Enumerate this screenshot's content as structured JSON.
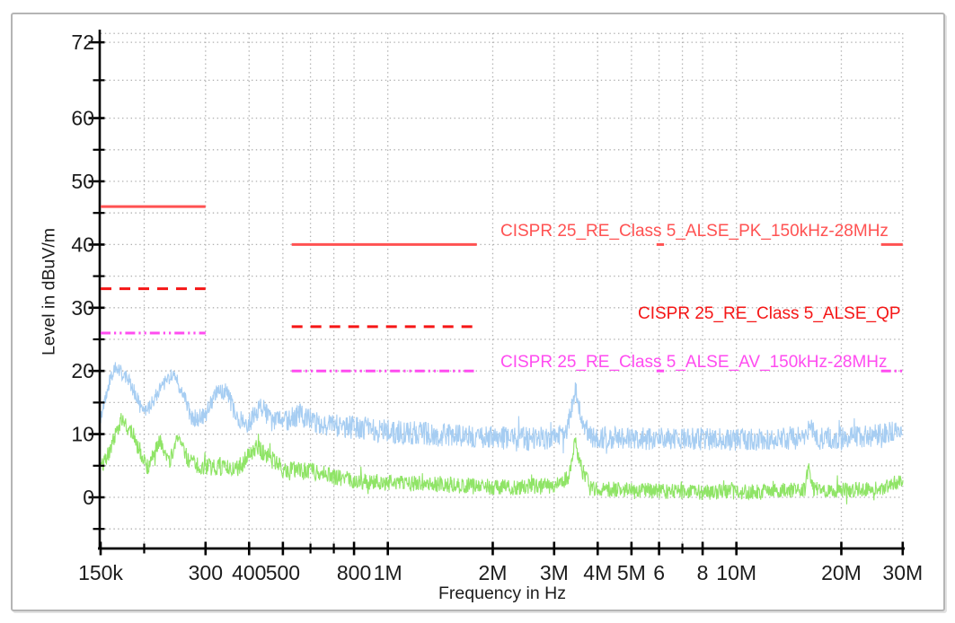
{
  "window": {
    "background": "#ffffff",
    "frame_border_color": "#b5b5b5"
  },
  "chart_data": {
    "type": "line",
    "title": "",
    "xlabel": "Frequency in Hz",
    "ylabel": "Level in dBuV/m",
    "x_scale": "log",
    "x_range_hz": [
      150000,
      30000000
    ],
    "y_range_db": [
      -7.8,
      73.4
    ],
    "grid": {
      "style": "dotted",
      "color": "#b0b0b0"
    },
    "axis_color": "#000000",
    "text_color": "#1c1c1c",
    "y_axis": {
      "major_ticks": [
        72,
        60,
        50,
        40,
        30,
        20,
        10,
        0
      ],
      "minor_ticks": [
        66,
        55,
        45,
        35,
        25,
        15,
        5,
        -5
      ],
      "top_boundary_db": 73.4
    },
    "x_axis": {
      "ticks": [
        {
          "hz": 150000,
          "label": "150k",
          "major": true
        },
        {
          "hz": 200000,
          "label": "",
          "major": false
        },
        {
          "hz": 300000,
          "label": "300",
          "major": true
        },
        {
          "hz": 400000,
          "label": "400",
          "major": true
        },
        {
          "hz": 500000,
          "label": "500",
          "major": true
        },
        {
          "hz": 600000,
          "label": "",
          "major": false
        },
        {
          "hz": 700000,
          "label": "",
          "major": false
        },
        {
          "hz": 800000,
          "label": "800",
          "major": true
        },
        {
          "hz": 1000000,
          "label": "1M",
          "major": true
        },
        {
          "hz": 2000000,
          "label": "2M",
          "major": true
        },
        {
          "hz": 3000000,
          "label": "3M",
          "major": true
        },
        {
          "hz": 4000000,
          "label": "4M",
          "major": true
        },
        {
          "hz": 5000000,
          "label": "5M",
          "major": true
        },
        {
          "hz": 6000000,
          "label": "6",
          "major": true
        },
        {
          "hz": 7000000,
          "label": "",
          "major": false
        },
        {
          "hz": 8000000,
          "label": "8",
          "major": true
        },
        {
          "hz": 10000000,
          "label": "10M",
          "major": true
        },
        {
          "hz": 20000000,
          "label": "20M",
          "major": true
        },
        {
          "hz": 30000000,
          "label": "30M",
          "major": true
        }
      ]
    },
    "limit_lines": [
      {
        "name": "CISPR 25_RE_Class 5_ALSE_PK_150kHz-28MHz",
        "detector": "peak",
        "color": "#ff5252",
        "style": "solid",
        "segments": [
          {
            "from_hz": 150000,
            "to_hz": 300000,
            "level_db": 46
          },
          {
            "from_hz": 530000,
            "to_hz": 1800000,
            "level_db": 40
          },
          {
            "from_hz": 5900000,
            "to_hz": 6200000,
            "level_db": 40
          },
          {
            "from_hz": 26000000,
            "to_hz": 30000000,
            "level_db": 40
          }
        ]
      },
      {
        "name": "CISPR 25_RE_Class 5_ALSE_QP",
        "detector": "quasi-peak",
        "color": "#f51616",
        "style": "dashed",
        "segments": [
          {
            "from_hz": 150000,
            "to_hz": 300000,
            "level_db": 33
          },
          {
            "from_hz": 530000,
            "to_hz": 1800000,
            "level_db": 27
          }
        ]
      },
      {
        "name": "CISPR 25_RE_Class 5_ALSE_AV_150kHz-28MHz",
        "detector": "average",
        "color": "#ff4cf0",
        "style": "dash-dot-dot",
        "segments": [
          {
            "from_hz": 150000,
            "to_hz": 300000,
            "level_db": 26
          },
          {
            "from_hz": 530000,
            "to_hz": 1800000,
            "level_db": 20
          },
          {
            "from_hz": 5900000,
            "to_hz": 6200000,
            "level_db": 20
          },
          {
            "from_hz": 26000000,
            "to_hz": 30000000,
            "level_db": 20
          }
        ]
      }
    ],
    "annotations": [
      {
        "id": "pk",
        "text": "CISPR 25_RE_Class 5_ALSE_PK_150kHz-28MHz",
        "color": "#ff5252"
      },
      {
        "id": "qp",
        "text": "CISPR 25_RE_Class 5_ALSE_QP",
        "color": "#f51616"
      },
      {
        "id": "av",
        "text": "CISPR 25_RE_Class 5_ALSE_AV_150kHz-28MHz",
        "color": "#ff4cf0"
      }
    ],
    "traces": [
      {
        "name": "measurement-peak-trace",
        "color": "#a6cdf2",
        "noise_seed": 7,
        "anchors": [
          [
            150000,
            13.0,
            1.3
          ],
          [
            158000,
            18.0,
            1.2
          ],
          [
            166000,
            20.6,
            1.0
          ],
          [
            180000,
            18.6,
            1.3
          ],
          [
            200000,
            13.2,
            1.3
          ],
          [
            218000,
            16.6,
            1.4
          ],
          [
            240000,
            19.4,
            1.1
          ],
          [
            258000,
            17.0,
            1.5
          ],
          [
            274000,
            12.4,
            1.4
          ],
          [
            300000,
            12.8,
            1.5
          ],
          [
            322000,
            17.0,
            1.3
          ],
          [
            346000,
            16.6,
            1.4
          ],
          [
            370000,
            12.2,
            1.5
          ],
          [
            400000,
            11.9,
            1.7
          ],
          [
            433000,
            14.4,
            1.6
          ],
          [
            468000,
            11.9,
            1.7
          ],
          [
            520000,
            12.3,
            1.8
          ],
          [
            560000,
            13.1,
            1.8
          ],
          [
            620000,
            11.7,
            1.8
          ],
          [
            700000,
            11.4,
            1.8
          ],
          [
            850000,
            10.9,
            1.9
          ],
          [
            1000000,
            10.4,
            1.9
          ],
          [
            1400000,
            9.9,
            1.9
          ],
          [
            2000000,
            9.4,
            1.9
          ],
          [
            2800000,
            9.3,
            1.9
          ],
          [
            3250000,
            10.2,
            1.6
          ],
          [
            3450000,
            17.2,
            1.4
          ],
          [
            3600000,
            12.6,
            1.6
          ],
          [
            3800000,
            9.5,
            1.8
          ],
          [
            5000000,
            9.3,
            1.8
          ],
          [
            8000000,
            9.2,
            1.8
          ],
          [
            12000000,
            9.1,
            1.8
          ],
          [
            15500000,
            9.5,
            1.9
          ],
          [
            16100000,
            11.2,
            1.9
          ],
          [
            17000000,
            9.3,
            1.8
          ],
          [
            21000000,
            9.5,
            1.8
          ],
          [
            26000000,
            9.9,
            1.8
          ],
          [
            29000000,
            10.9,
            1.7
          ],
          [
            30000000,
            11.3,
            1.5
          ]
        ]
      },
      {
        "name": "measurement-average-trace",
        "color": "#8fe466",
        "noise_seed": 13,
        "anchors": [
          [
            150000,
            4.8,
            1.3
          ],
          [
            160000,
            7.6,
            1.3
          ],
          [
            172000,
            12.4,
            1.1
          ],
          [
            186000,
            9.8,
            1.4
          ],
          [
            205000,
            4.7,
            1.3
          ],
          [
            222000,
            9.0,
            1.1
          ],
          [
            236000,
            5.5,
            1.3
          ],
          [
            251000,
            9.6,
            1.1
          ],
          [
            268000,
            5.7,
            1.3
          ],
          [
            300000,
            4.7,
            1.4
          ],
          [
            330000,
            4.9,
            1.4
          ],
          [
            365000,
            4.1,
            1.4
          ],
          [
            420000,
            8.0,
            1.3
          ],
          [
            447000,
            6.7,
            1.4
          ],
          [
            500000,
            4.5,
            1.4
          ],
          [
            600000,
            4.1,
            1.4
          ],
          [
            700000,
            3.3,
            1.4
          ],
          [
            850000,
            2.5,
            1.3
          ],
          [
            1000000,
            2.3,
            1.3
          ],
          [
            1500000,
            1.9,
            1.3
          ],
          [
            2200000,
            1.6,
            1.3
          ],
          [
            3000000,
            1.8,
            1.3
          ],
          [
            3300000,
            3.1,
            1.2
          ],
          [
            3450000,
            8.9,
            1.2
          ],
          [
            3600000,
            4.4,
            1.3
          ],
          [
            3800000,
            1.5,
            1.3
          ],
          [
            5000000,
            1.1,
            1.2
          ],
          [
            8000000,
            0.8,
            1.2
          ],
          [
            12000000,
            0.9,
            1.2
          ],
          [
            15700000,
            1.3,
            1.2
          ],
          [
            16100000,
            5.1,
            1.1
          ],
          [
            16600000,
            1.3,
            1.2
          ],
          [
            20000000,
            1.1,
            1.2
          ],
          [
            25000000,
            1.3,
            1.2
          ],
          [
            28000000,
            1.8,
            1.2
          ],
          [
            30000000,
            2.7,
            1.2
          ]
        ]
      }
    ]
  }
}
